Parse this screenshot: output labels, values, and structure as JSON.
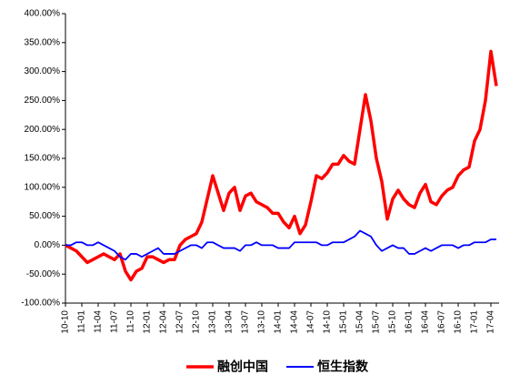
{
  "chart_data": {
    "type": "line",
    "categories": [
      "10-10",
      null,
      null,
      "11-01",
      null,
      null,
      "11-04",
      null,
      null,
      "11-07",
      null,
      null,
      "11-10",
      null,
      null,
      "12-01",
      null,
      null,
      "12-04",
      null,
      null,
      "12-07",
      null,
      null,
      "12-10",
      null,
      null,
      "13-01",
      null,
      null,
      "13-04",
      null,
      null,
      "13-07",
      null,
      null,
      "13-10",
      null,
      null,
      "14-01",
      null,
      null,
      "14-04",
      null,
      null,
      "14-07",
      null,
      null,
      "14-10",
      null,
      null,
      "15-01",
      null,
      null,
      "15-04",
      null,
      null,
      "15-07",
      null,
      null,
      "15-10",
      null,
      null,
      "16-01",
      null,
      null,
      "16-04",
      null,
      null,
      "16-07",
      null,
      null,
      "16-10",
      null,
      null,
      "17-01",
      null,
      null,
      "17-04",
      null
    ],
    "series": [
      {
        "name": "融创中国",
        "color": "#ff0000",
        "values": [
          0,
          -5,
          -10,
          -20,
          -30,
          -25,
          -20,
          -15,
          -20,
          -25,
          -15,
          -45,
          -60,
          -45,
          -40,
          -20,
          -20,
          -25,
          -30,
          -25,
          -25,
          0,
          10,
          15,
          20,
          40,
          80,
          120,
          90,
          60,
          90,
          100,
          60,
          85,
          90,
          75,
          70,
          65,
          55,
          55,
          40,
          30,
          50,
          20,
          35,
          75,
          120,
          115,
          125,
          140,
          140,
          155,
          145,
          140,
          200,
          260,
          215,
          150,
          110,
          45,
          80,
          95,
          80,
          70,
          65,
          90,
          105,
          75,
          70,
          85,
          95,
          100,
          120,
          130,
          135,
          180,
          200,
          250,
          335,
          275
        ]
      },
      {
        "name": "恒生指数",
        "color": "#0000ff",
        "values": [
          0,
          0,
          5,
          5,
          0,
          0,
          5,
          0,
          -5,
          -10,
          -20,
          -25,
          -15,
          -15,
          -20,
          -15,
          -10,
          -5,
          -15,
          -15,
          -15,
          -10,
          -5,
          0,
          0,
          -5,
          5,
          5,
          0,
          -5,
          -5,
          -5,
          -10,
          0,
          0,
          5,
          0,
          0,
          0,
          -5,
          -5,
          -5,
          5,
          5,
          5,
          5,
          5,
          0,
          0,
          5,
          5,
          5,
          10,
          15,
          25,
          20,
          15,
          0,
          -10,
          -5,
          0,
          -5,
          -5,
          -15,
          -15,
          -10,
          -5,
          -10,
          -5,
          0,
          0,
          0,
          -5,
          0,
          0,
          5,
          5,
          5,
          10,
          10
        ]
      }
    ],
    "ylim": [
      -100,
      400
    ],
    "yticks": [
      {
        "value": -100,
        "label": "-100.00%"
      },
      {
        "value": -50,
        "label": "-50.00%"
      },
      {
        "value": 0,
        "label": "0.00%"
      },
      {
        "value": 50,
        "label": "50.00%"
      },
      {
        "value": 100,
        "label": "100.00%"
      },
      {
        "value": 150,
        "label": "150.00%"
      },
      {
        "value": 200,
        "label": "200.00%"
      },
      {
        "value": 250,
        "label": "250.00%"
      },
      {
        "value": 300,
        "label": "300.00%"
      },
      {
        "value": 350,
        "label": "350.00%"
      },
      {
        "value": 400,
        "label": "400.00%"
      }
    ],
    "grid": false,
    "legend": "bottom"
  }
}
